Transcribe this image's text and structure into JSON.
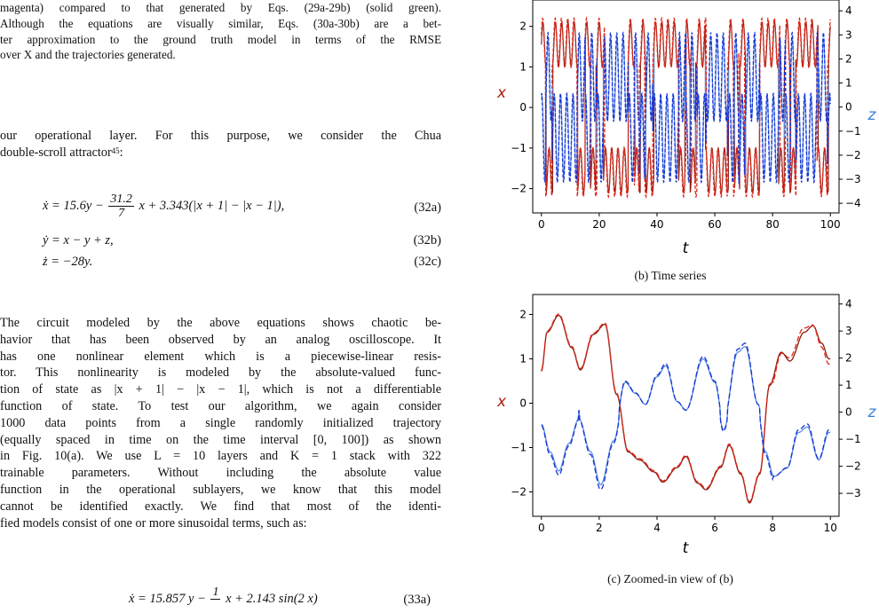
{
  "caption_lines": [
    "magenta) compared to that generated by Eqs. (29a-29b) (solid green).",
    "Although the equations are visually similar, Eqs. (30a-30b) are a bet-",
    "ter approximation to the ground truth model in terms of the RMSE",
    "over X and the trajectories generated."
  ],
  "intro_lines": [
    "our operational layer. For this purpose, we consider the Chua",
    "double-scroll attractor",
    ":"
  ],
  "intro_citation": "45",
  "equations": [
    {
      "lhs": "ẋ = 15.6y −",
      "frac_num": "31.2",
      "frac_den": "7",
      "rhs": "x + 3.343(|x + 1| − |x − 1|),",
      "num": "(32a)"
    },
    {
      "text": "ẏ = x − y + z,",
      "num": "(32b)"
    },
    {
      "text": "ż = −28y.",
      "num": "(32c)"
    }
  ],
  "body_lines": [
    "The circuit modeled by the above equations shows chaotic be-",
    "havior that has been observed by an analog oscilloscope. It",
    "has one nonlinear element which is a piecewise-linear resis-",
    "tor. This nonlinearity is modeled by the absolute-valued func-",
    "tion of state as |x + 1| − |x − 1|, which is not a differentiable",
    "function of state. To test our algorithm, we again consider",
    "1000 data points from a single randomly initialized trajectory",
    "(equally spaced in time on the time interval [0, 100]) as shown",
    "in Fig. 10(a). We use L = 10 layers and K = 1 stack with 322",
    "trainable parameters. Without including the absolute value",
    "function in the operational sublayers, we know that this model",
    "cannot be identified exactly. We find that most of the identi-",
    "fied models consist of one or more sinusoidal terms, such as:"
  ],
  "bottom_equation": {
    "lhs": "ẋ = 15.857 y −",
    "frac_num": "1",
    "rhs": "x + 2.143 sin(2 x)",
    "num": "(33a)"
  },
  "plot_b": {
    "caption": "(b) Time series",
    "xlabel": "t",
    "ylabel_left": "x",
    "ylabel_right": "z",
    "x_ticks": [
      "0",
      "20",
      "40",
      "60",
      "80",
      "100"
    ],
    "y_left_ticks": [
      "2",
      "1",
      "0",
      "−1",
      "−2"
    ],
    "y_right_ticks": [
      "4",
      "3",
      "2",
      "1",
      "0",
      "−1",
      "−2",
      "−3",
      "−4"
    ]
  },
  "plot_c": {
    "caption": "(c) Zoomed-in view of (b)",
    "xlabel": "t",
    "ylabel_left": "x",
    "ylabel_right": "z",
    "x_ticks": [
      "0",
      "2",
      "4",
      "6",
      "8",
      "10"
    ],
    "y_left_ticks": [
      "2",
      "1",
      "0",
      "−1",
      "−2"
    ],
    "y_right_ticks": [
      "4",
      "3",
      "2",
      "1",
      "0",
      "−1",
      "−2",
      "−3"
    ]
  },
  "colors": {
    "x_true": "#8b1a0e",
    "x_pred": "#e0281a",
    "z_true": "#5a8ee0",
    "z_pred": "#1533d6"
  }
}
